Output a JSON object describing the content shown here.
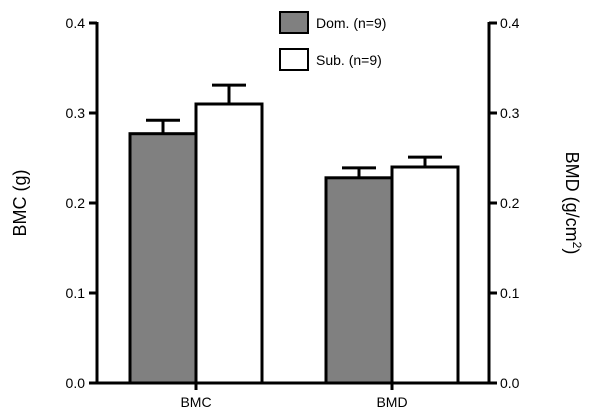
{
  "chart_data": {
    "type": "bar",
    "categories": [
      "BMC",
      "BMD"
    ],
    "series": [
      {
        "name": "Dom. (n=9)",
        "values": [
          0.277,
          0.228
        ],
        "errors": [
          0.015,
          0.011
        ],
        "color": "#808080"
      },
      {
        "name": "Sub. (n=9)",
        "values": [
          0.31,
          0.24
        ],
        "errors": [
          0.021,
          0.011
        ],
        "color": "#ffffff"
      }
    ],
    "ylabel_left": "BMC (g)",
    "ylabel_right_base": "BMD (g/cm",
    "ylabel_right_sup": "2",
    "ylabel_right_close": ")",
    "ylim": [
      0,
      0.4
    ],
    "yticks": [
      "0.0",
      "0.1",
      "0.2",
      "0.3",
      "0.4"
    ],
    "ylim_right": [
      0,
      0.4
    ],
    "yticks_right": [
      "0.0",
      "0.1",
      "0.2",
      "0.3",
      "0.4"
    ],
    "legend_position": "top-center",
    "grid": false
  }
}
